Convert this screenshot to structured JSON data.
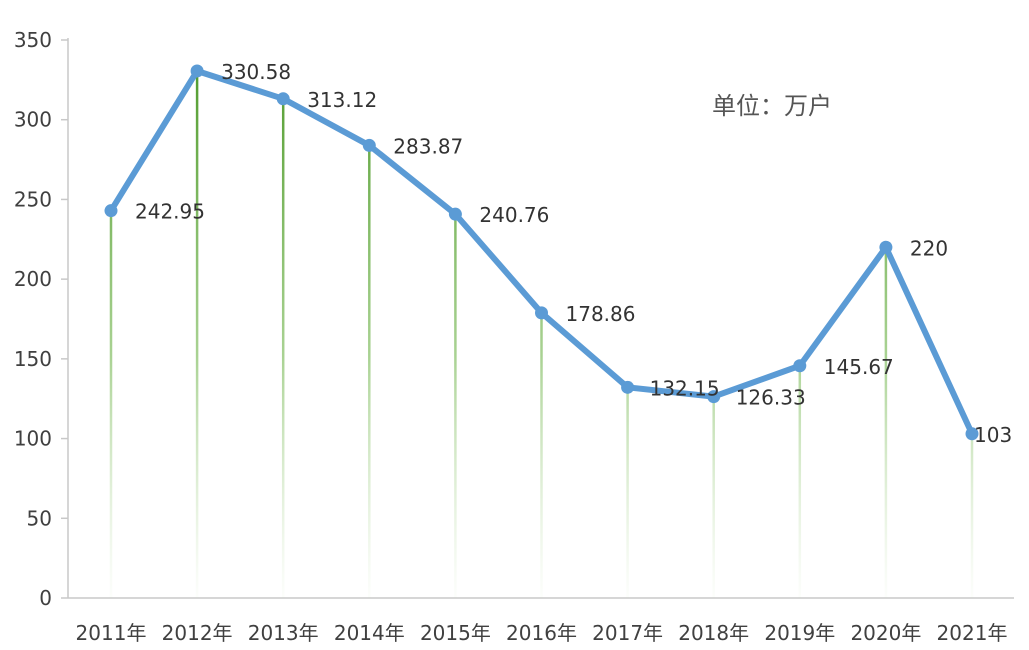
{
  "chart_data": {
    "type": "line",
    "title": "",
    "xlabel": "",
    "ylabel": "",
    "unit_note": "单位：万户",
    "categories": [
      "2011年",
      "2012年",
      "2013年",
      "2014年",
      "2015年",
      "2016年",
      "2017年",
      "2018年",
      "2019年",
      "2020年",
      "2021年"
    ],
    "series": [
      {
        "name": "",
        "values": [
          242.95,
          330.58,
          313.12,
          283.87,
          240.76,
          178.86,
          132.15,
          126.33,
          145.67,
          220,
          103
        ],
        "labels": [
          "242.95",
          "330.58",
          "313.12",
          "283.87",
          "240.76",
          "178.86",
          "132.15",
          "126.33",
          "145.67",
          "220",
          "103"
        ]
      }
    ],
    "ylim": [
      0,
      350
    ],
    "yticks": [
      0,
      50,
      100,
      150,
      200,
      250,
      300,
      350
    ],
    "grid": false,
    "drop_lines": true,
    "colors": {
      "line": "#5b9bd5",
      "drop_line": "#70ad47",
      "axis": "#c8c8c8"
    }
  }
}
